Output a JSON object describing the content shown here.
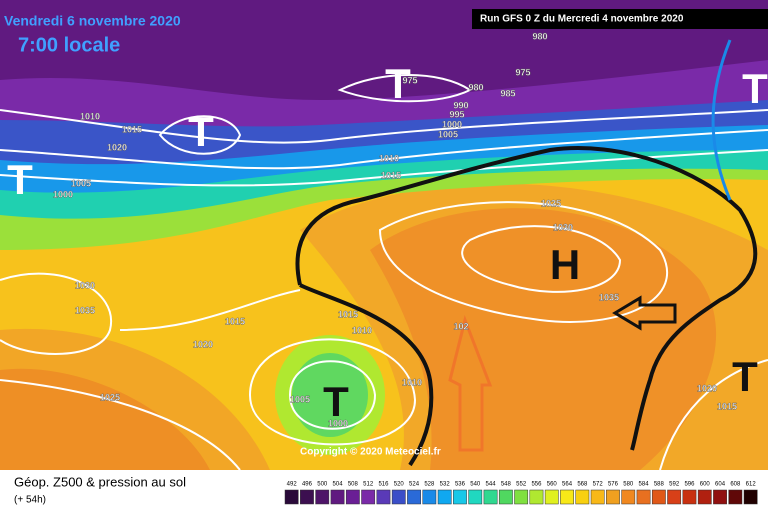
{
  "map": {
    "title": "Vendredi 6 novembre 2020",
    "subtitle": "7:00 locale",
    "run": "Run GFS 0 Z du Mercredi 4 novembre 2020",
    "copyright": "Copyright © 2020 Meteociel.fr",
    "isobar_labels": [
      980,
      975,
      975,
      980,
      985,
      990,
      995,
      1000,
      1005,
      1010,
      1015,
      1020,
      1010,
      1015,
      1005,
      1000,
      1025,
      1030,
      1035,
      1030,
      1035,
      1015,
      1015,
      1010,
      1020,
      1025,
      1010,
      1005,
      1000,
      1020,
      1015,
      102
    ],
    "pressure_centers": [
      {
        "label": "T",
        "color": "#ffffff"
      },
      {
        "label": "T",
        "color": "#ffffff"
      },
      {
        "label": "T",
        "color": "#ffffff"
      },
      {
        "label": "T",
        "color": "#ffffff"
      },
      {
        "label": "H",
        "color": "#111111"
      },
      {
        "label": "T",
        "color": "#111111"
      },
      {
        "label": "T",
        "color": "#111111"
      }
    ]
  },
  "footer": {
    "title": "Géop. Z500 & pression au sol",
    "subtitle": "(+ 54h)"
  },
  "scale": {
    "labels": [
      492,
      496,
      500,
      504,
      508,
      512,
      516,
      520,
      524,
      528,
      532,
      536,
      540,
      544,
      548,
      552,
      556,
      560,
      564,
      568,
      572,
      576,
      580,
      584,
      588,
      592,
      596,
      600,
      604,
      608,
      612
    ],
    "colors": [
      "#2a0a3a",
      "#3c0f50",
      "#4e1468",
      "#601a80",
      "#6a1f95",
      "#7a2aa8",
      "#5a3ab8",
      "#3a4ec8",
      "#2a6ad8",
      "#1a8ae8",
      "#10a8f0",
      "#18c8e8",
      "#20d8c0",
      "#30d890",
      "#50d860",
      "#80e040",
      "#b0e830",
      "#e0f020",
      "#f8e818",
      "#f8d010",
      "#f8b818",
      "#f0a020",
      "#f08820",
      "#e87020",
      "#e05818",
      "#d84018",
      "#c83010",
      "#b02010",
      "#901010",
      "#600808",
      "#200000"
    ]
  }
}
